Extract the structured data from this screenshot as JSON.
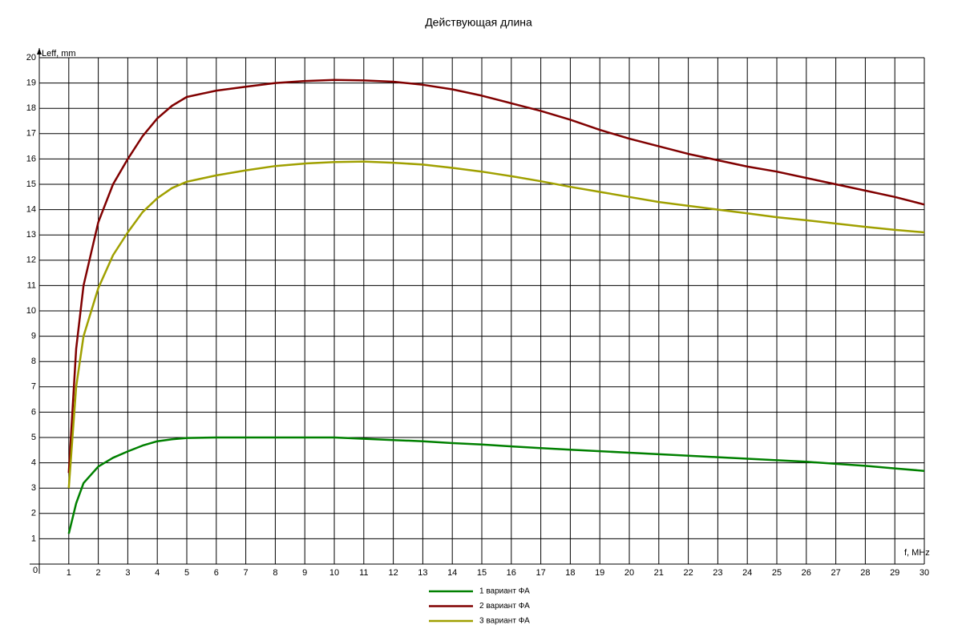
{
  "chart_data": {
    "type": "line",
    "title": "Действующая длина",
    "y_label": "Leff, mm",
    "x_label": "f, MHz",
    "x": [
      1,
      1.25,
      1.5,
      2,
      2.5,
      3,
      3.5,
      4,
      4.5,
      5,
      6,
      7,
      8,
      9,
      10,
      11,
      12,
      13,
      14,
      15,
      16,
      17,
      18,
      19,
      20,
      21,
      22,
      23,
      24,
      25,
      26,
      27,
      28,
      29,
      30
    ],
    "series": [
      {
        "name": "1 вариант ФА",
        "color": "#008000",
        "values": [
          1.2,
          2.4,
          3.2,
          3.85,
          4.2,
          4.45,
          4.68,
          4.85,
          4.93,
          4.98,
          5.0,
          5.0,
          5.0,
          5.0,
          5.0,
          4.95,
          4.9,
          4.85,
          4.78,
          4.72,
          4.65,
          4.58,
          4.52,
          4.46,
          4.4,
          4.34,
          4.28,
          4.22,
          4.16,
          4.1,
          4.04,
          3.96,
          3.88,
          3.78,
          3.68
        ]
      },
      {
        "name": "2 вариант ФА",
        "color": "#800000",
        "values": [
          3.6,
          8.5,
          11,
          13.5,
          15,
          16,
          16.9,
          17.6,
          18.1,
          18.45,
          18.7,
          18.85,
          19.0,
          19.08,
          19.12,
          19.1,
          19.05,
          18.93,
          18.75,
          18.5,
          18.2,
          17.9,
          17.55,
          17.15,
          16.8,
          16.5,
          16.2,
          15.95,
          15.7,
          15.5,
          15.25,
          15.0,
          14.75,
          14.5,
          14.2
        ]
      },
      {
        "name": "3 вариант ФА",
        "color": "#a0a000",
        "values": [
          3.0,
          7,
          9,
          10.9,
          12.2,
          13.1,
          13.9,
          14.45,
          14.85,
          15.1,
          15.35,
          15.55,
          15.72,
          15.82,
          15.88,
          15.9,
          15.85,
          15.78,
          15.65,
          15.5,
          15.32,
          15.12,
          14.9,
          14.7,
          14.5,
          14.3,
          14.15,
          14.0,
          13.85,
          13.7,
          13.58,
          13.45,
          13.32,
          13.2,
          13.1
        ]
      }
    ],
    "xlim": [
      0,
      30
    ],
    "ylim": [
      0,
      20
    ],
    "xticks": [
      0,
      1,
      2,
      3,
      4,
      5,
      6,
      7,
      8,
      9,
      10,
      11,
      12,
      13,
      14,
      15,
      16,
      17,
      18,
      19,
      20,
      21,
      22,
      23,
      24,
      25,
      26,
      27,
      28,
      29,
      30
    ],
    "yticks": [
      1,
      2,
      3,
      4,
      5,
      6,
      7,
      8,
      9,
      10,
      11,
      12,
      13,
      14,
      15,
      16,
      17,
      18,
      19,
      20
    ],
    "grid": true
  }
}
